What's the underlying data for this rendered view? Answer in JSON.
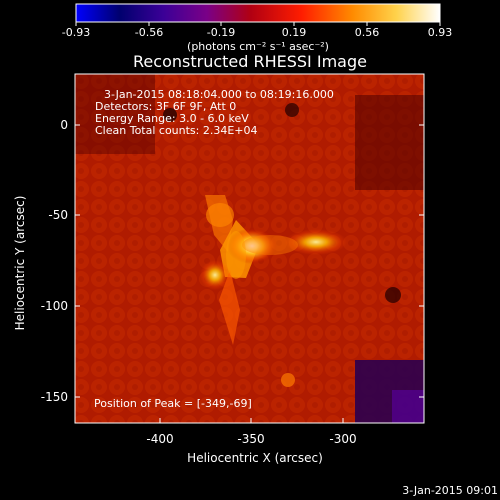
{
  "colorbar": {
    "tick_labels": [
      "-0.93",
      "-0.56",
      "-0.19",
      "0.19",
      "0.56",
      "0.93"
    ],
    "units": "(photons cm⁻² s⁻¹ asec⁻²)"
  },
  "image": {
    "title": "Reconstructed RHESSI Image",
    "info_lines": [
      "3-Jan-2015 08:18:04.000 to 08:19:16.000",
      "Detectors: 3F 6F 9F, Att 0",
      "Energy Range: 3.0 - 6.0 keV",
      "Clean     Total counts: 2.34E+04"
    ],
    "peak_label": "Position of Peak = [-349,-69]"
  },
  "axes": {
    "xlabel": "Heliocentric X (arcsec)",
    "ylabel": "Heliocentric Y (arcsec)",
    "xticks": [
      "-400",
      "-350",
      "-300"
    ],
    "yticks": [
      "0",
      "-50",
      "-100",
      "-150"
    ]
  },
  "footer": {
    "timestamp": "3-Jan-2015 09:01"
  },
  "colors": {
    "background": "#000000",
    "text": "#ffffff",
    "hot_low": "#240000",
    "hot_mid": "#c32a00",
    "hot_high": "#ffffff"
  }
}
